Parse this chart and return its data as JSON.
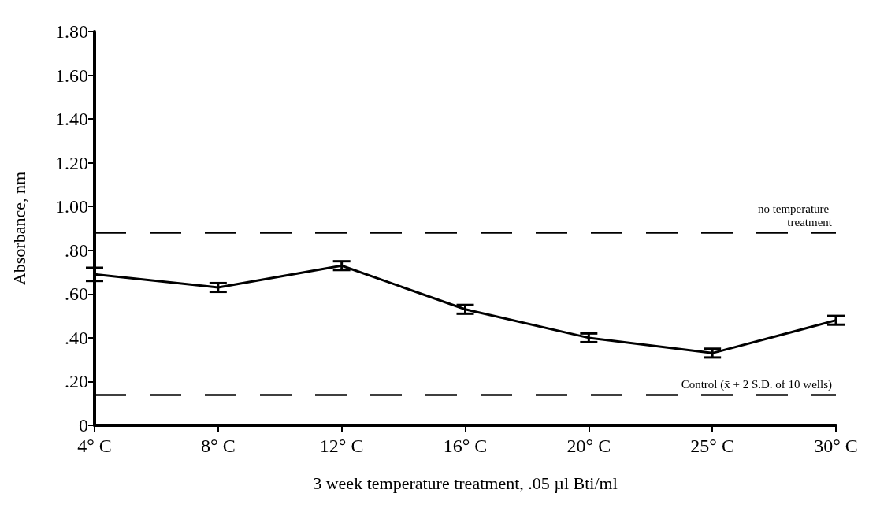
{
  "chart_data": {
    "type": "line",
    "xlabel": "3 week temperature treatment, .05 µl Bti/ml",
    "ylabel": "Absorbance, nm",
    "categories": [
      "4° C",
      "8° C",
      "12° C",
      "16° C",
      "20° C",
      "25° C",
      "30° C"
    ],
    "series": [
      {
        "color": "#000000",
        "values": [
          0.69,
          0.63,
          0.73,
          0.53,
          0.4,
          0.33,
          0.48
        ],
        "errors": [
          0.03,
          0.02,
          0.02,
          0.02,
          0.02,
          0.02,
          0.02
        ]
      }
    ],
    "ylim": [
      0,
      1.8
    ],
    "yticks": [
      0,
      {
        "value": 0.2,
        "label": ".20"
      },
      {
        "value": 0.4,
        "label": ".40"
      },
      {
        "value": 0.6,
        "label": ".60"
      },
      {
        "value": 0.8,
        "label": ".80"
      },
      {
        "value": 1.0,
        "label": "1.00"
      },
      {
        "value": 1.2,
        "label": "1.20"
      },
      {
        "value": 1.4,
        "label": "1.40"
      },
      {
        "value": 1.6,
        "label": "1.60"
      },
      {
        "value": 1.8,
        "label": "1.80"
      }
    ],
    "ref_lines": [
      {
        "axis": "y",
        "value": 0.88,
        "label": "no temperature treatment",
        "line_style": "dashed",
        "color": "#000000"
      },
      {
        "axis": "y",
        "value": 0.14,
        "label": "Control (x̄ + 2 S.D. of 10 wells)",
        "line_style": "dashed",
        "color": "#000000"
      }
    ],
    "grid": false,
    "marker": "none",
    "line_style": "solid"
  }
}
